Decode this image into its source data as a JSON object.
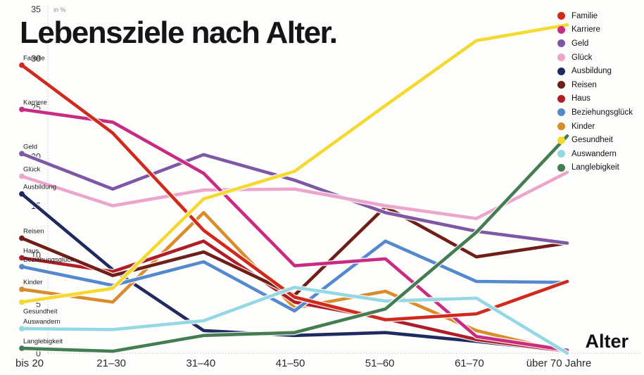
{
  "title": "Lebensziele nach Alter.",
  "y_axis": {
    "unit_label": "in %",
    "ticks": [
      35,
      30,
      25,
      20,
      15,
      10,
      5,
      0
    ],
    "max": 35
  },
  "x_axis": {
    "title": "Alter"
  },
  "chart_data": {
    "type": "line",
    "title": "Lebensziele nach Alter.",
    "ylabel": "in %",
    "xlabel": "Alter",
    "ylim": [
      0,
      35
    ],
    "grid": false,
    "legend_position": "top-right",
    "categories": [
      "bis 20",
      "21–30",
      "31–40",
      "41–50",
      "51–60",
      "61–70",
      "über 70 Jahre"
    ],
    "series": [
      {
        "name": "Familie",
        "color": "#cf2a1b",
        "label_position": "above",
        "values": [
          29.3,
          22.4,
          12.5,
          5.7,
          3.4,
          4.0,
          7.3
        ]
      },
      {
        "name": "Karriere",
        "color": "#c92b83",
        "label_position": "above",
        "values": [
          24.8,
          23.5,
          18.3,
          8.9,
          9.6,
          1.7,
          0.3
        ]
      },
      {
        "name": "Geld",
        "color": "#7e58a4",
        "label_position": "above",
        "values": [
          20.3,
          16.7,
          20.2,
          17.6,
          14.3,
          12.4,
          11.2
        ]
      },
      {
        "name": "Glück",
        "color": "#eca6cb",
        "label_position": "above",
        "values": [
          18.0,
          15.0,
          16.6,
          16.7,
          15.0,
          13.7,
          18.4
        ]
      },
      {
        "name": "Ausbildung",
        "color": "#1f2a5e",
        "label_position": "above",
        "values": [
          16.2,
          8.5,
          2.3,
          1.8,
          2.1,
          1.2,
          0.2
        ]
      },
      {
        "name": "Reisen",
        "color": "#701f18",
        "label_position": "above",
        "values": [
          11.7,
          7.9,
          10.3,
          5.9,
          14.9,
          9.8,
          11.2
        ]
      },
      {
        "name": "Haus",
        "color": "#b01d26",
        "label_position": "above",
        "values": [
          9.7,
          8.3,
          11.4,
          5.2,
          3.5,
          1.4,
          0.2
        ]
      },
      {
        "name": "Beziehungsglück",
        "color": "#5589ce",
        "label_position": "above",
        "values": [
          8.8,
          6.9,
          9.3,
          4.3,
          11.4,
          7.3,
          7.2
        ]
      },
      {
        "name": "Kinder",
        "color": "#d98c2b",
        "label_position": "above",
        "values": [
          6.5,
          5.2,
          14.3,
          4.6,
          6.3,
          2.3,
          0.1
        ]
      },
      {
        "name": "Gesundheit",
        "color": "#f5d92e",
        "label_position": "below",
        "values": [
          5.2,
          6.6,
          15.7,
          18.5,
          25.2,
          31.8,
          33.4
        ]
      },
      {
        "name": "Auswandern",
        "color": "#93d8e2",
        "label_position": "above",
        "values": [
          2.5,
          2.4,
          3.3,
          6.7,
          5.3,
          5.6,
          0.0
        ]
      },
      {
        "name": "Langlebigkeit",
        "color": "#447d52",
        "label_position": "above",
        "values": [
          0.5,
          0.2,
          1.8,
          2.1,
          4.5,
          12.3,
          22.1
        ]
      }
    ]
  }
}
